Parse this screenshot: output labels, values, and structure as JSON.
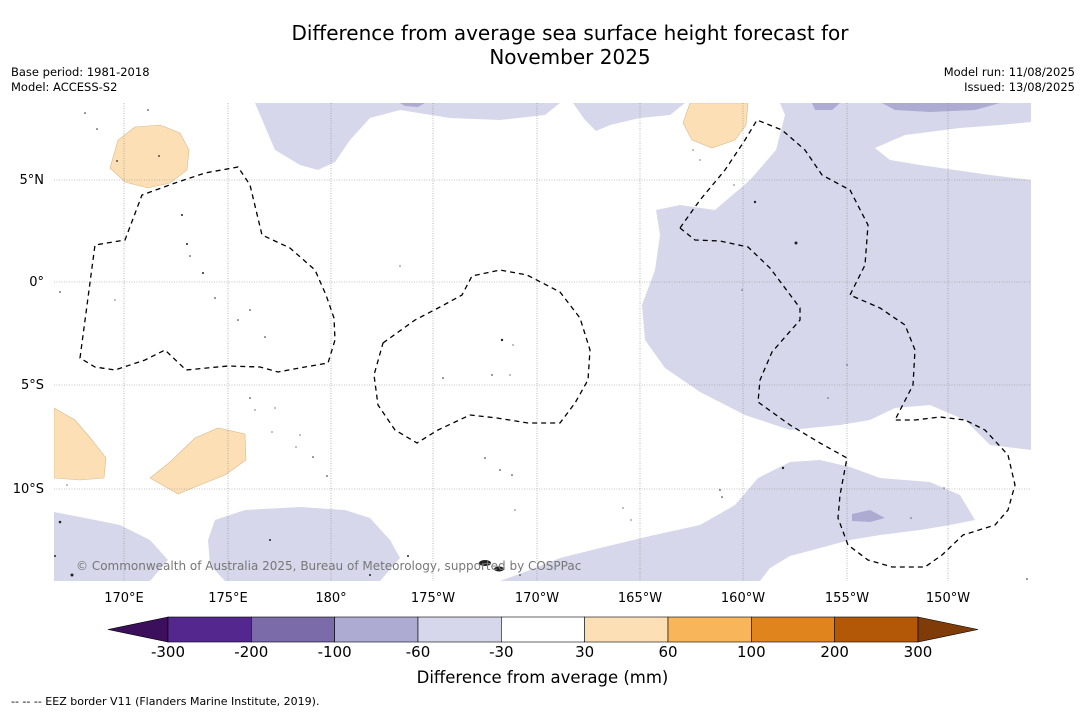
{
  "title": {
    "line1": "Difference from average sea surface height forecast for",
    "line2": "November 2025"
  },
  "meta": {
    "base_period": "Base period: 1981-2018",
    "model": "Model: ACCESS-S2",
    "model_run": "Model run: 11/08/2025",
    "issued": "Issued: 13/08/2025"
  },
  "map": {
    "lat_labels": [
      "5°N",
      "0°",
      "5°S",
      "10°S"
    ],
    "lon_labels": [
      "170°E",
      "175°E",
      "180°",
      "175°W",
      "170°W",
      "165°W",
      "160°W",
      "155°W",
      "150°W"
    ],
    "credit": "© Commonwealth of Australia 2025, Bureau of Meteorology, supported by COSPPac",
    "colors": {
      "light_lavender": "#d6d7ea",
      "mid_lavender": "#aeabd3",
      "peach": "#fddfb5",
      "eez_line": "#000000",
      "land": "#444444"
    }
  },
  "colorbar": {
    "label": "Difference from average (mm)",
    "ticks": [
      "-300",
      "-200",
      "-100",
      "-60",
      "-30",
      "30",
      "60",
      "100",
      "200",
      "300"
    ],
    "colors": {
      "under": "#3b0f5c",
      "bins": [
        "#54278f",
        "#7b6ba9",
        "#aeabd3",
        "#d6d7ea",
        "#ffffff",
        "#fddfb5",
        "#f8b55a",
        "#e0841d",
        "#b35806"
      ],
      "over": "#7f3b08"
    }
  },
  "footer": "--  --  -- EEZ border V11 (Flanders Marine Institute, 2019)."
}
